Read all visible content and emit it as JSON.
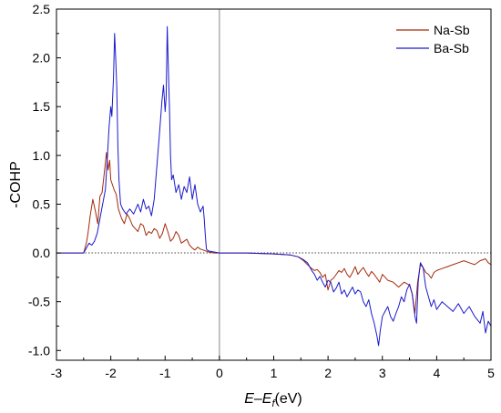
{
  "chart_data": {
    "type": "line",
    "title": "",
    "ylabel": "-COHP",
    "xlabel": {
      "main": "E",
      "dash": "–",
      "sym": "E",
      "sub": "f",
      "unit": "(eV)"
    },
    "xlim": [
      -3,
      5
    ],
    "ylim": [
      -1.1,
      2.5
    ],
    "xticks": [
      -3,
      -2,
      -1,
      0,
      1,
      2,
      3,
      4,
      5
    ],
    "xtick_labels": [
      "-3",
      "-2",
      "-1",
      "0",
      "1",
      "2",
      "3",
      "4",
      "5"
    ],
    "yticks": [
      -1.0,
      -0.5,
      0.0,
      0.5,
      1.0,
      1.5,
      2.0,
      2.5
    ],
    "ytick_labels": [
      "-1.0",
      "-0.5",
      "0.0",
      "0.5",
      "1.0",
      "1.5",
      "2.0",
      "2.5"
    ],
    "reference_lines": {
      "vertical_x": 0,
      "horizontal_y": 0,
      "horizontal_style": "dotted"
    },
    "legend": {
      "position": "top-right"
    },
    "colors": {
      "Na-Sb": "#a52a0a",
      "Ba-Sb": "#1a1acc"
    },
    "series": [
      {
        "name": "Na-Sb",
        "color": "#a52a0a",
        "x": [
          -3.0,
          -2.5,
          -2.45,
          -2.42,
          -2.38,
          -2.33,
          -2.28,
          -2.24,
          -2.2,
          -2.16,
          -2.12,
          -2.08,
          -2.05,
          -2.02,
          -2.0,
          -1.97,
          -1.94,
          -1.9,
          -1.86,
          -1.8,
          -1.75,
          -1.7,
          -1.65,
          -1.6,
          -1.55,
          -1.5,
          -1.45,
          -1.4,
          -1.35,
          -1.3,
          -1.25,
          -1.2,
          -1.15,
          -1.1,
          -1.05,
          -1.0,
          -0.95,
          -0.9,
          -0.85,
          -0.8,
          -0.75,
          -0.7,
          -0.65,
          -0.6,
          -0.55,
          -0.5,
          -0.45,
          -0.4,
          -0.35,
          -0.3,
          -0.25,
          -0.2,
          -0.1,
          0.0,
          0.5,
          1.0,
          1.3,
          1.45,
          1.55,
          1.62,
          1.7,
          1.75,
          1.8,
          1.85,
          1.9,
          1.95,
          2.0,
          2.05,
          2.1,
          2.15,
          2.2,
          2.25,
          2.3,
          2.35,
          2.4,
          2.45,
          2.5,
          2.55,
          2.6,
          2.65,
          2.7,
          2.75,
          2.8,
          2.85,
          2.9,
          2.95,
          3.0,
          3.1,
          3.2,
          3.3,
          3.4,
          3.5,
          3.55,
          3.6,
          3.65,
          3.7,
          3.75,
          3.8,
          3.85,
          3.9,
          3.95,
          4.0,
          4.1,
          4.2,
          4.3,
          4.4,
          4.5,
          4.6,
          4.7,
          4.8,
          4.9,
          4.95,
          5.0
        ],
        "values": [
          0.0,
          0.0,
          0.1,
          0.2,
          0.38,
          0.55,
          0.42,
          0.3,
          0.58,
          0.62,
          0.82,
          1.03,
          0.85,
          0.95,
          0.75,
          0.7,
          0.65,
          0.6,
          0.45,
          0.35,
          0.3,
          0.4,
          0.35,
          0.28,
          0.25,
          0.22,
          0.3,
          0.28,
          0.18,
          0.22,
          0.2,
          0.25,
          0.23,
          0.15,
          0.2,
          0.3,
          0.22,
          0.12,
          0.15,
          0.22,
          0.18,
          0.1,
          0.12,
          0.14,
          0.08,
          0.05,
          0.03,
          0.06,
          0.04,
          0.03,
          0.02,
          0.01,
          0.0,
          0.0,
          0.0,
          -0.01,
          -0.02,
          -0.04,
          -0.08,
          -0.12,
          -0.16,
          -0.18,
          -0.17,
          -0.2,
          -0.25,
          -0.22,
          -0.38,
          -0.28,
          -0.26,
          -0.22,
          -0.18,
          -0.2,
          -0.16,
          -0.22,
          -0.25,
          -0.2,
          -0.14,
          -0.22,
          -0.18,
          -0.15,
          -0.2,
          -0.24,
          -0.19,
          -0.22,
          -0.26,
          -0.3,
          -0.22,
          -0.28,
          -0.3,
          -0.35,
          -0.3,
          -0.33,
          -0.42,
          -0.62,
          -0.3,
          -0.12,
          -0.15,
          -0.2,
          -0.22,
          -0.26,
          -0.2,
          -0.18,
          -0.16,
          -0.14,
          -0.12,
          -0.1,
          -0.08,
          -0.1,
          -0.12,
          -0.08,
          -0.06,
          -0.1,
          -0.12
        ]
      },
      {
        "name": "Ba-Sb",
        "color": "#1a1acc",
        "x": [
          -3.0,
          -2.5,
          -2.45,
          -2.4,
          -2.35,
          -2.3,
          -2.25,
          -2.2,
          -2.15,
          -2.1,
          -2.06,
          -2.03,
          -2.0,
          -1.98,
          -1.95,
          -1.93,
          -1.91,
          -1.89,
          -1.87,
          -1.85,
          -1.82,
          -1.78,
          -1.72,
          -1.65,
          -1.58,
          -1.5,
          -1.45,
          -1.4,
          -1.35,
          -1.3,
          -1.25,
          -1.2,
          -1.15,
          -1.1,
          -1.06,
          -1.03,
          -1.0,
          -0.98,
          -0.96,
          -0.94,
          -0.92,
          -0.9,
          -0.88,
          -0.85,
          -0.8,
          -0.75,
          -0.7,
          -0.65,
          -0.6,
          -0.55,
          -0.5,
          -0.45,
          -0.4,
          -0.35,
          -0.3,
          -0.28,
          -0.26,
          -0.24,
          -0.2,
          -0.1,
          0.0,
          0.5,
          1.0,
          1.3,
          1.45,
          1.55,
          1.62,
          1.7,
          1.75,
          1.8,
          1.85,
          1.9,
          1.95,
          2.0,
          2.05,
          2.1,
          2.15,
          2.2,
          2.25,
          2.3,
          2.35,
          2.4,
          2.45,
          2.5,
          2.55,
          2.6,
          2.65,
          2.7,
          2.75,
          2.8,
          2.85,
          2.9,
          2.93,
          2.96,
          3.0,
          3.05,
          3.1,
          3.15,
          3.2,
          3.25,
          3.3,
          3.35,
          3.4,
          3.45,
          3.5,
          3.55,
          3.6,
          3.63,
          3.66,
          3.7,
          3.75,
          3.8,
          3.85,
          3.9,
          3.95,
          4.0,
          4.1,
          4.2,
          4.3,
          4.4,
          4.5,
          4.6,
          4.7,
          4.8,
          4.85,
          4.9,
          4.95,
          5.0
        ],
        "values": [
          0.0,
          0.0,
          0.05,
          0.1,
          0.08,
          0.12,
          0.2,
          0.35,
          0.5,
          0.65,
          1.0,
          1.3,
          1.5,
          1.4,
          1.8,
          2.25,
          2.0,
          1.7,
          1.1,
          0.75,
          0.5,
          0.45,
          0.4,
          0.45,
          0.4,
          0.5,
          0.42,
          0.55,
          0.45,
          0.48,
          0.38,
          0.55,
          0.9,
          1.25,
          1.55,
          1.72,
          1.45,
          1.6,
          2.32,
          1.9,
          1.5,
          1.0,
          0.75,
          0.8,
          0.62,
          0.7,
          0.55,
          0.68,
          0.62,
          0.78,
          0.55,
          0.7,
          0.5,
          0.42,
          0.48,
          0.35,
          0.18,
          0.04,
          0.02,
          0.01,
          0.0,
          0.0,
          -0.01,
          -0.02,
          -0.04,
          -0.07,
          -0.1,
          -0.18,
          -0.22,
          -0.28,
          -0.24,
          -0.3,
          -0.35,
          -0.28,
          -0.3,
          -0.4,
          -0.36,
          -0.3,
          -0.42,
          -0.38,
          -0.45,
          -0.4,
          -0.35,
          -0.42,
          -0.38,
          -0.4,
          -0.5,
          -0.55,
          -0.48,
          -0.62,
          -0.72,
          -0.85,
          -0.95,
          -0.8,
          -0.65,
          -0.6,
          -0.55,
          -0.65,
          -0.7,
          -0.62,
          -0.55,
          -0.45,
          -0.5,
          -0.38,
          -0.32,
          -0.42,
          -0.65,
          -0.72,
          -0.3,
          -0.1,
          -0.15,
          -0.35,
          -0.45,
          -0.55,
          -0.48,
          -0.58,
          -0.5,
          -0.55,
          -0.6,
          -0.52,
          -0.62,
          -0.55,
          -0.65,
          -0.72,
          -0.6,
          -0.82,
          -0.7,
          -0.75
        ]
      }
    ]
  }
}
